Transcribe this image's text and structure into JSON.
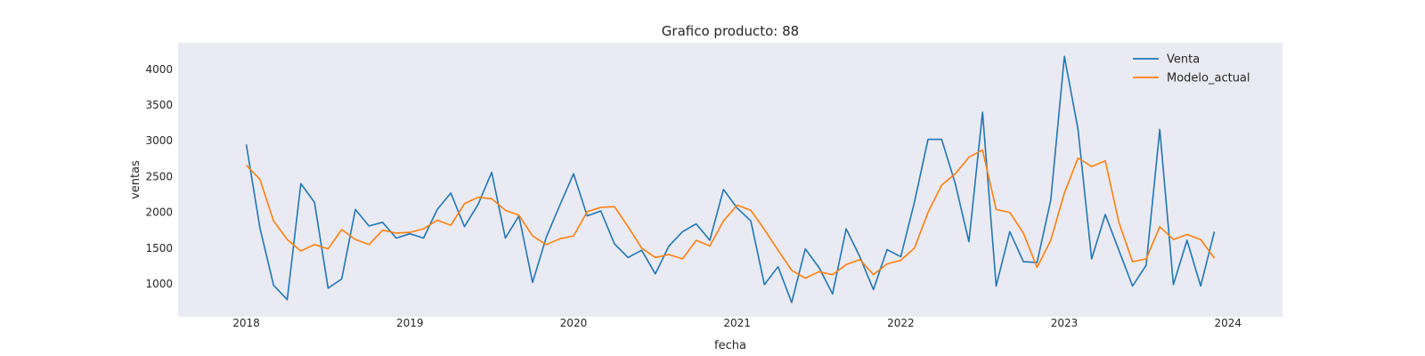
{
  "chart_data": {
    "type": "line",
    "title": "Grafico producto: 88",
    "xlabel": "fecha",
    "ylabel": "ventas",
    "x_start": "2018-01",
    "xticks": [
      "2018",
      "2019",
      "2020",
      "2021",
      "2022",
      "2023",
      "2024"
    ],
    "yticks": [
      "1000",
      "1500",
      "2000",
      "2500",
      "3000",
      "3500",
      "4000"
    ],
    "xlim": [
      "2017-08",
      "2024-05"
    ],
    "ylim": [
      540,
      4370
    ],
    "grid": false,
    "legend_position": "top-right",
    "background": "#eaeaf2",
    "series": [
      {
        "name": "Venta",
        "color": "#1f77b4",
        "values": [
          2950,
          1780,
          980,
          780,
          2400,
          2140,
          940,
          1070,
          2040,
          1810,
          1860,
          1640,
          1700,
          1640,
          2040,
          2270,
          1800,
          2110,
          2560,
          1640,
          1950,
          1020,
          1650,
          2100,
          2540,
          1950,
          2020,
          1560,
          1370,
          1470,
          1140,
          1530,
          1730,
          1840,
          1610,
          2320,
          2060,
          1880,
          990,
          1240,
          740,
          1490,
          1230,
          860,
          1770,
          1380,
          920,
          1480,
          1380,
          2140,
          3020,
          3020,
          2400,
          1590,
          3400,
          970,
          1730,
          1310,
          1300,
          2170,
          4180,
          3160,
          1350,
          1970,
          1470,
          970,
          1260,
          3160,
          990,
          1610,
          970,
          1730
        ]
      },
      {
        "name": "Modelo_actual",
        "color": "#ff7f0e",
        "values": [
          2660,
          2460,
          1880,
          1620,
          1460,
          1550,
          1490,
          1760,
          1620,
          1550,
          1750,
          1710,
          1720,
          1770,
          1890,
          1820,
          2120,
          2210,
          2190,
          2030,
          1960,
          1670,
          1550,
          1630,
          1670,
          2010,
          2070,
          2080,
          1800,
          1500,
          1370,
          1410,
          1350,
          1610,
          1530,
          1880,
          2100,
          2030,
          1760,
          1470,
          1190,
          1080,
          1170,
          1130,
          1270,
          1340,
          1130,
          1280,
          1330,
          1500,
          2000,
          2380,
          2540,
          2770,
          2870,
          2040,
          2000,
          1710,
          1230,
          1610,
          2270,
          2760,
          2640,
          2720,
          1860,
          1310,
          1350,
          1800,
          1620,
          1690,
          1620,
          1360
        ]
      }
    ]
  }
}
